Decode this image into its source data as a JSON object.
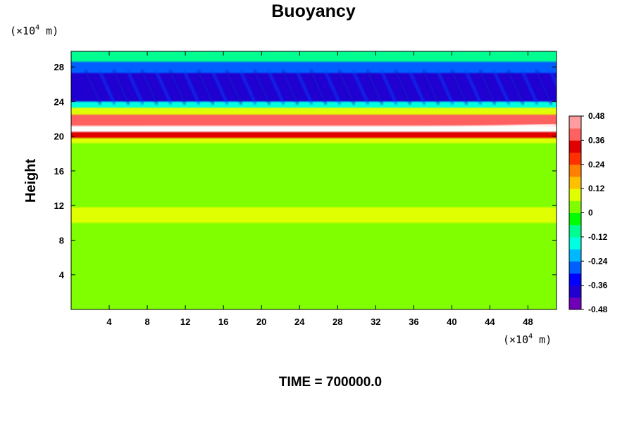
{
  "chart_data": {
    "type": "heatmap",
    "title": "Buoyancy",
    "ylabel": "Height",
    "xlabel": "",
    "x_unit": {
      "prefix": "(×10",
      "exponent": "4",
      "suffix": " m)"
    },
    "y_unit": {
      "prefix": "(×10",
      "exponent": "4",
      "suffix": " m)"
    },
    "xlim": [
      0,
      51
    ],
    "ylim": [
      0,
      29.8
    ],
    "x_ticks": [
      4,
      8,
      12,
      16,
      20,
      24,
      28,
      32,
      36,
      40,
      44,
      48
    ],
    "y_ticks": [
      4,
      8,
      12,
      16,
      20,
      24,
      28
    ],
    "x_tick_labels": [
      "4",
      "8",
      "12",
      "16",
      "20",
      "24",
      "28",
      "32",
      "36",
      "40",
      "44",
      "48"
    ],
    "y_tick_labels": [
      "4",
      "8",
      "12",
      "16",
      "20",
      "24",
      "28"
    ],
    "colorbar": {
      "range": [
        -0.48,
        0.48
      ],
      "ticks": [
        0.48,
        0.36,
        0.24,
        0.12,
        0,
        -0.12,
        -0.24,
        -0.36,
        -0.48
      ],
      "tick_labels": [
        "0.48",
        "0.36",
        "0.24",
        "0.12",
        "0",
        "-0.12",
        "-0.24",
        "-0.36",
        "-0.48"
      ],
      "colors": [
        "#7000b8",
        "#2000d0",
        "#0000ff",
        "#0060ff",
        "#00b8ff",
        "#00ffe0",
        "#00ff90",
        "#00ff00",
        "#80ff00",
        "#e0ff00",
        "#ffc000",
        "#ff8000",
        "#ff3000",
        "#e00000",
        "#ff6060",
        "#ff9ca0"
      ]
    },
    "field_bands": [
      {
        "y_range": [
          0,
          10.0
        ],
        "value": 0.02
      },
      {
        "y_range": [
          10.0,
          11.8
        ],
        "value": 0.08
      },
      {
        "y_range": [
          11.8,
          19.2
        ],
        "value": 0.03
      },
      {
        "y_range": [
          19.2,
          19.8
        ],
        "value": 0.1
      },
      {
        "y_range": [
          19.8,
          20.5
        ],
        "value": 0.3
      },
      {
        "y_range": [
          20.5,
          21.2
        ],
        "value": 0.5
      },
      {
        "y_range": [
          21.2,
          22.5
        ],
        "value": 0.38
      },
      {
        "y_range": [
          22.5,
          23.3
        ],
        "value": 0.1
      },
      {
        "y_range": [
          23.3,
          24.0
        ],
        "value": -0.15
      },
      {
        "y_range": [
          24.0,
          27.3
        ],
        "value": -0.4
      },
      {
        "y_range": [
          27.3,
          28.6
        ],
        "value": -0.25
      },
      {
        "y_range": [
          28.6,
          29.8
        ],
        "value": -0.1
      }
    ]
  },
  "footer": {
    "time_label": "TIME = 700000.0"
  }
}
